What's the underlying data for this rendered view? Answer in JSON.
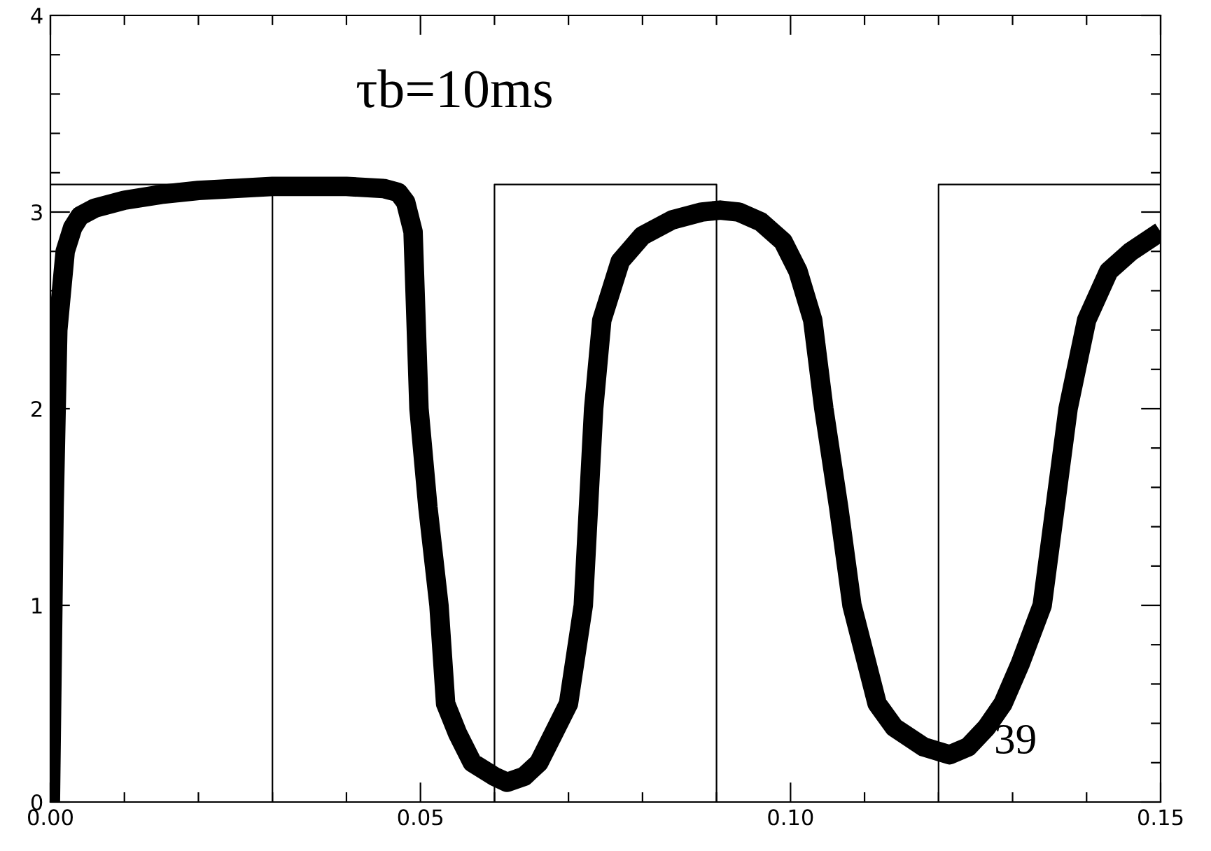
{
  "chart_data": {
    "type": "line",
    "annotations": [
      "τb=10ms",
      {
        "text": "39",
        "x": 0.1275,
        "y": 0.3
      }
    ],
    "xlim": [
      0,
      0.15
    ],
    "ylim": [
      0,
      4
    ],
    "xticks": [
      {
        "value": 0,
        "label": "0.00"
      },
      {
        "value": 0.01,
        "label": null
      },
      {
        "value": 0.02,
        "label": null
      },
      {
        "value": 0.03,
        "label": null
      },
      {
        "value": 0.04,
        "label": null
      },
      {
        "value": 0.05,
        "label": "0.05"
      },
      {
        "value": 0.06,
        "label": null
      },
      {
        "value": 0.07,
        "label": null
      },
      {
        "value": 0.08,
        "label": null
      },
      {
        "value": 0.09,
        "label": null
      },
      {
        "value": 0.1,
        "label": "0.10"
      },
      {
        "value": 0.11,
        "label": null
      },
      {
        "value": 0.12,
        "label": null
      },
      {
        "value": 0.13,
        "label": null
      },
      {
        "value": 0.14,
        "label": null
      },
      {
        "value": 0.15,
        "label": "0.15"
      }
    ],
    "yticks": [
      0,
      {
        "value": 0.2,
        "label": null
      },
      {
        "value": 0.4,
        "label": null
      },
      {
        "value": 0.6,
        "label": null
      },
      {
        "value": 0.8,
        "label": null
      },
      1,
      {
        "value": 1.2,
        "label": null
      },
      {
        "value": 1.4,
        "label": null
      },
      {
        "value": 1.6,
        "label": null
      },
      {
        "value": 1.8,
        "label": null
      },
      2,
      {
        "value": 2.2,
        "label": null
      },
      {
        "value": 2.4,
        "label": null
      },
      {
        "value": 2.6,
        "label": null
      },
      {
        "value": 2.8,
        "label": null
      },
      3,
      {
        "value": 3.2,
        "label": null
      },
      {
        "value": 3.4,
        "label": null
      },
      {
        "value": 3.6,
        "label": null
      },
      {
        "value": 3.8,
        "label": null
      },
      4
    ],
    "grid": false,
    "marker": "none",
    "series": [
      {
        "color": "#000000",
        "x": [
          0,
          0.0005,
          0.001,
          0.002,
          0.003,
          0.004,
          0.006,
          0.01,
          0.015,
          0.02,
          0.03,
          0.04,
          0.045,
          0.047,
          0.048,
          0.049,
          0.0498,
          0.051,
          0.0525,
          0.0534,
          0.055,
          0.057,
          0.06,
          0.0617,
          0.064,
          0.066,
          0.068,
          0.07,
          0.072,
          0.0734,
          0.0745,
          0.077,
          0.08,
          0.084,
          0.088,
          0.0905,
          0.093,
          0.096,
          0.099,
          0.101,
          0.103,
          0.1045,
          0.1065,
          0.1083,
          0.1117,
          0.114,
          0.118,
          0.1215,
          0.124,
          0.1265,
          0.1287,
          0.131,
          0.134,
          0.1375,
          0.14,
          0.143,
          0.146,
          0.15
        ],
        "values": [
          0,
          1.5,
          2.4,
          2.8,
          2.92,
          2.98,
          3.02,
          3.06,
          3.09,
          3.11,
          3.13,
          3.13,
          3.12,
          3.1,
          3.05,
          2.9,
          2.0,
          1.5,
          1.0,
          0.5,
          0.35,
          0.2,
          0.13,
          0.1,
          0.13,
          0.2,
          0.35,
          0.5,
          1.0,
          2.0,
          2.45,
          2.75,
          2.88,
          2.96,
          3.0,
          3.01,
          3.0,
          2.95,
          2.85,
          2.7,
          2.45,
          2.0,
          1.5,
          1.0,
          0.5,
          0.38,
          0.28,
          0.24,
          0.28,
          0.38,
          0.5,
          0.7,
          1.0,
          2.0,
          2.45,
          2.7,
          2.8,
          2.9
        ]
      },
      {
        "type": "step",
        "color": "#000000",
        "x": [
          0,
          0.03,
          0.06,
          0.09,
          0.12,
          0.15
        ],
        "values": [
          3.14,
          0,
          3.14,
          0,
          3.14,
          3.14
        ]
      }
    ]
  }
}
